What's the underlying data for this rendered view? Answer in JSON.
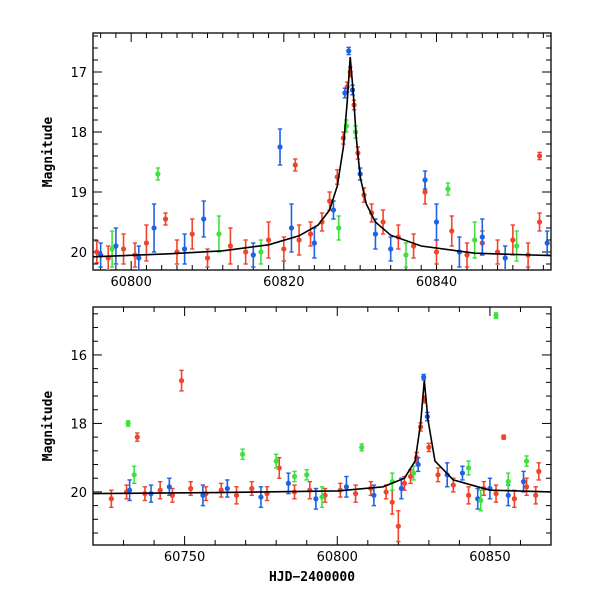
{
  "chart_data": [
    {
      "type": "scatter",
      "title": "",
      "xlabel": "",
      "ylabel": "Magnitude",
      "xlim": [
        60795,
        60855
      ],
      "ylim": [
        20.3,
        16.35
      ],
      "y_inverted": true,
      "x_ticks": [
        "60800",
        "60820",
        "60840"
      ],
      "y_ticks": [
        "17",
        "18",
        "19",
        "20"
      ],
      "grid": false,
      "legend": "none",
      "colors": {
        "red": "#f0442c",
        "blue": "#1e62e6",
        "green": "#3fe03f",
        "model": "#000000"
      },
      "model_curve": {
        "x": [
          60795,
          60805,
          60812,
          60818,
          60822,
          60824.5,
          60826,
          60827,
          60827.8,
          60828.3,
          60828.7,
          60829.1,
          60829.5,
          60830,
          60830.8,
          60832,
          60834,
          60838,
          60845,
          60855
        ],
        "y": [
          20.08,
          20.03,
          19.98,
          19.88,
          19.73,
          19.55,
          19.3,
          18.9,
          18.25,
          17.5,
          16.75,
          17.35,
          18.1,
          18.75,
          19.2,
          19.5,
          19.72,
          19.9,
          20.02,
          20.06
        ]
      },
      "series": [
        {
          "color": "red",
          "points": [
            {
              "x": 60795.5,
              "y": 20.0,
              "err": 0.18
            },
            {
              "x": 60797,
              "y": 20.1,
              "err": 0.2
            },
            {
              "x": 60799,
              "y": 19.95,
              "err": 0.25
            },
            {
              "x": 60800.5,
              "y": 20.05,
              "err": 0.2
            },
            {
              "x": 60802,
              "y": 19.85,
              "err": 0.3
            },
            {
              "x": 60804.5,
              "y": 19.45,
              "err": 0.1
            },
            {
              "x": 60806,
              "y": 20.0,
              "err": 0.2
            },
            {
              "x": 60808,
              "y": 19.7,
              "err": 0.25
            },
            {
              "x": 60810,
              "y": 20.1,
              "err": 0.15
            },
            {
              "x": 60813,
              "y": 19.9,
              "err": 0.3
            },
            {
              "x": 60815,
              "y": 20.0,
              "err": 0.2
            },
            {
              "x": 60818,
              "y": 19.8,
              "err": 0.3
            },
            {
              "x": 60820,
              "y": 19.95,
              "err": 0.2
            },
            {
              "x": 60822,
              "y": 19.8,
              "err": 0.25
            },
            {
              "x": 60821.5,
              "y": 18.55,
              "err": 0.1
            },
            {
              "x": 60823.5,
              "y": 19.7,
              "err": 0.2
            },
            {
              "x": 60825,
              "y": 19.5,
              "err": 0.15
            },
            {
              "x": 60826,
              "y": 19.15,
              "err": 0.15
            },
            {
              "x": 60827,
              "y": 18.75,
              "err": 0.12
            },
            {
              "x": 60827.8,
              "y": 18.1,
              "err": 0.1
            },
            {
              "x": 60828.3,
              "y": 17.25,
              "err": 0.08
            },
            {
              "x": 60828.7,
              "y": 17.0,
              "err": 0.08
            },
            {
              "x": 60829.2,
              "y": 17.55,
              "err": 0.08
            },
            {
              "x": 60829.7,
              "y": 18.35,
              "err": 0.1
            },
            {
              "x": 60830.5,
              "y": 19.05,
              "err": 0.12
            },
            {
              "x": 60831.5,
              "y": 19.35,
              "err": 0.15
            },
            {
              "x": 60833,
              "y": 19.5,
              "err": 0.2
            },
            {
              "x": 60835,
              "y": 19.75,
              "err": 0.2
            },
            {
              "x": 60837,
              "y": 19.9,
              "err": 0.2
            },
            {
              "x": 60838.5,
              "y": 19.0,
              "err": 0.2
            },
            {
              "x": 60840,
              "y": 20.0,
              "err": 0.2
            },
            {
              "x": 60842,
              "y": 19.65,
              "err": 0.25
            },
            {
              "x": 60844,
              "y": 20.05,
              "err": 0.2
            },
            {
              "x": 60846,
              "y": 19.85,
              "err": 0.2
            },
            {
              "x": 60848,
              "y": 20.0,
              "err": 0.2
            },
            {
              "x": 60850,
              "y": 19.8,
              "err": 0.25
            },
            {
              "x": 60852,
              "y": 20.05,
              "err": 0.2
            },
            {
              "x": 60853.5,
              "y": 18.4,
              "err": 0.06
            },
            {
              "x": 60853.5,
              "y": 19.5,
              "err": 0.15
            }
          ]
        },
        {
          "color": "blue",
          "points": [
            {
              "x": 60796,
              "y": 20.05,
              "err": 0.2
            },
            {
              "x": 60798,
              "y": 19.9,
              "err": 0.3
            },
            {
              "x": 60801,
              "y": 20.1,
              "err": 0.2
            },
            {
              "x": 60803,
              "y": 19.6,
              "err": 0.4
            },
            {
              "x": 60807,
              "y": 19.95,
              "err": 0.25
            },
            {
              "x": 60809.5,
              "y": 19.45,
              "err": 0.3
            },
            {
              "x": 60816,
              "y": 20.05,
              "err": 0.2
            },
            {
              "x": 60819.5,
              "y": 18.25,
              "err": 0.3
            },
            {
              "x": 60821,
              "y": 19.6,
              "err": 0.4
            },
            {
              "x": 60824,
              "y": 19.85,
              "err": 0.25
            },
            {
              "x": 60826.5,
              "y": 19.3,
              "err": 0.15
            },
            {
              "x": 60828,
              "y": 17.35,
              "err": 0.08
            },
            {
              "x": 60828.5,
              "y": 16.65,
              "err": 0.06
            },
            {
              "x": 60829,
              "y": 17.3,
              "err": 0.08
            },
            {
              "x": 60830,
              "y": 18.7,
              "err": 0.1
            },
            {
              "x": 60832,
              "y": 19.7,
              "err": 0.25
            },
            {
              "x": 60834,
              "y": 19.95,
              "err": 0.2
            },
            {
              "x": 60838.5,
              "y": 18.8,
              "err": 0.15
            },
            {
              "x": 60840,
              "y": 19.5,
              "err": 0.3
            },
            {
              "x": 60843,
              "y": 20.0,
              "err": 0.25
            },
            {
              "x": 60846,
              "y": 19.75,
              "err": 0.3
            },
            {
              "x": 60849,
              "y": 20.1,
              "err": 0.2
            },
            {
              "x": 60854.5,
              "y": 19.85,
              "err": 0.2
            }
          ]
        },
        {
          "color": "green",
          "points": [
            {
              "x": 60797.5,
              "y": 19.95,
              "err": 0.3
            },
            {
              "x": 60803.5,
              "y": 18.7,
              "err": 0.1
            },
            {
              "x": 60811.5,
              "y": 19.7,
              "err": 0.3
            },
            {
              "x": 60817,
              "y": 20.0,
              "err": 0.2
            },
            {
              "x": 60827.2,
              "y": 19.6,
              "err": 0.2
            },
            {
              "x": 60828.2,
              "y": 17.9,
              "err": 0.1
            },
            {
              "x": 60829.4,
              "y": 18.0,
              "err": 0.1
            },
            {
              "x": 60836,
              "y": 20.05,
              "err": 0.2
            },
            {
              "x": 60841.5,
              "y": 18.95,
              "err": 0.1
            },
            {
              "x": 60845,
              "y": 19.8,
              "err": 0.3
            },
            {
              "x": 60850.5,
              "y": 19.9,
              "err": 0.25
            }
          ]
        }
      ]
    },
    {
      "type": "scatter",
      "title": "",
      "xlabel": "HJD−2400000",
      "ylabel": "Magnitude",
      "xlim": [
        60720,
        60870
      ],
      "ylim": [
        21.55,
        14.6
      ],
      "y_inverted": true,
      "x_ticks": [
        "60750",
        "60800",
        "60850"
      ],
      "y_ticks": [
        "16",
        "18",
        "20"
      ],
      "grid": false,
      "legend": "none",
      "colors": {
        "red": "#f0442c",
        "blue": "#1e62e6",
        "green": "#3fe03f",
        "model": "#000000"
      },
      "model_curve": {
        "x": [
          60720,
          60760,
          60800,
          60815,
          60822,
          60825.5,
          60827.3,
          60828.5,
          60829.7,
          60832,
          60838,
          60850,
          60870
        ],
        "y": [
          20.05,
          20.02,
          19.97,
          19.85,
          19.6,
          19.1,
          18.0,
          16.75,
          17.9,
          19.1,
          19.65,
          19.95,
          20.0
        ]
      },
      "series": [
        {
          "color": "red",
          "points": [
            {
              "x": 60726,
              "y": 20.2,
              "err": 0.25
            },
            {
              "x": 60731,
              "y": 20.0,
              "err": 0.2
            },
            {
              "x": 60734.5,
              "y": 18.4,
              "err": 0.12
            },
            {
              "x": 60737,
              "y": 20.05,
              "err": 0.2
            },
            {
              "x": 60742,
              "y": 19.95,
              "err": 0.25
            },
            {
              "x": 60746,
              "y": 20.1,
              "err": 0.2
            },
            {
              "x": 60749,
              "y": 16.75,
              "err": 0.3
            },
            {
              "x": 60752,
              "y": 19.9,
              "err": 0.2
            },
            {
              "x": 60757,
              "y": 20.05,
              "err": 0.2
            },
            {
              "x": 60762,
              "y": 19.95,
              "err": 0.2
            },
            {
              "x": 60767,
              "y": 20.1,
              "err": 0.25
            },
            {
              "x": 60772,
              "y": 19.9,
              "err": 0.2
            },
            {
              "x": 60777,
              "y": 20.05,
              "err": 0.2
            },
            {
              "x": 60781,
              "y": 19.3,
              "err": 0.3
            },
            {
              "x": 60786,
              "y": 20.0,
              "err": 0.2
            },
            {
              "x": 60791,
              "y": 19.95,
              "err": 0.25
            },
            {
              "x": 60796,
              "y": 20.1,
              "err": 0.2
            },
            {
              "x": 60801,
              "y": 19.95,
              "err": 0.2
            },
            {
              "x": 60806,
              "y": 20.05,
              "err": 0.25
            },
            {
              "x": 60811,
              "y": 19.9,
              "err": 0.2
            },
            {
              "x": 60816,
              "y": 20.0,
              "err": 0.2
            },
            {
              "x": 60818,
              "y": 20.3,
              "err": 0.35
            },
            {
              "x": 60820,
              "y": 21.0,
              "err": 0.45
            },
            {
              "x": 60822,
              "y": 19.75,
              "err": 0.2
            },
            {
              "x": 60824,
              "y": 19.55,
              "err": 0.2
            },
            {
              "x": 60826,
              "y": 19.0,
              "err": 0.15
            },
            {
              "x": 60827.3,
              "y": 18.1,
              "err": 0.12
            },
            {
              "x": 60828.5,
              "y": 17.3,
              "err": 0.1
            },
            {
              "x": 60830,
              "y": 18.7,
              "err": 0.12
            },
            {
              "x": 60833,
              "y": 19.5,
              "err": 0.2
            },
            {
              "x": 60838,
              "y": 19.8,
              "err": 0.2
            },
            {
              "x": 60843,
              "y": 20.1,
              "err": 0.25
            },
            {
              "x": 60848,
              "y": 19.9,
              "err": 0.2
            },
            {
              "x": 60852,
              "y": 20.05,
              "err": 0.25
            },
            {
              "x": 60854.5,
              "y": 18.4,
              "err": 0.06
            },
            {
              "x": 60858,
              "y": 20.2,
              "err": 0.25
            },
            {
              "x": 60862,
              "y": 19.85,
              "err": 0.25
            },
            {
              "x": 60865,
              "y": 20.1,
              "err": 0.25
            },
            {
              "x": 60866,
              "y": 19.4,
              "err": 0.25
            }
          ]
        },
        {
          "color": "blue",
          "points": [
            {
              "x": 60732,
              "y": 19.95,
              "err": 0.3
            },
            {
              "x": 60739,
              "y": 20.05,
              "err": 0.25
            },
            {
              "x": 60745,
              "y": 19.85,
              "err": 0.25
            },
            {
              "x": 60756,
              "y": 20.1,
              "err": 0.3
            },
            {
              "x": 60764,
              "y": 19.9,
              "err": 0.25
            },
            {
              "x": 60775,
              "y": 20.15,
              "err": 0.3
            },
            {
              "x": 60784,
              "y": 19.75,
              "err": 0.3
            },
            {
              "x": 60793,
              "y": 20.2,
              "err": 0.3
            },
            {
              "x": 60803,
              "y": 19.85,
              "err": 0.3
            },
            {
              "x": 60812,
              "y": 20.1,
              "err": 0.3
            },
            {
              "x": 60821,
              "y": 19.9,
              "err": 0.3
            },
            {
              "x": 60826.5,
              "y": 19.2,
              "err": 0.2
            },
            {
              "x": 60828.3,
              "y": 16.65,
              "err": 0.08
            },
            {
              "x": 60829.5,
              "y": 17.8,
              "err": 0.12
            },
            {
              "x": 60836,
              "y": 19.5,
              "err": 0.35
            },
            {
              "x": 60841,
              "y": 19.45,
              "err": 0.2
            },
            {
              "x": 60846,
              "y": 20.2,
              "err": 0.3
            },
            {
              "x": 60850,
              "y": 19.9,
              "err": 0.3
            },
            {
              "x": 60856,
              "y": 20.1,
              "err": 0.3
            },
            {
              "x": 60861,
              "y": 19.7,
              "err": 0.3
            }
          ]
        },
        {
          "color": "green",
          "points": [
            {
              "x": 60731.5,
              "y": 18.0,
              "err": 0.08
            },
            {
              "x": 60733.5,
              "y": 19.5,
              "err": 0.25
            },
            {
              "x": 60769,
              "y": 18.9,
              "err": 0.15
            },
            {
              "x": 60780,
              "y": 19.1,
              "err": 0.2
            },
            {
              "x": 60786,
              "y": 19.55,
              "err": 0.15
            },
            {
              "x": 60790,
              "y": 19.5,
              "err": 0.15
            },
            {
              "x": 60795,
              "y": 20.15,
              "err": 0.3
            },
            {
              "x": 60808,
              "y": 18.7,
              "err": 0.1
            },
            {
              "x": 60818,
              "y": 19.7,
              "err": 0.25
            },
            {
              "x": 60825,
              "y": 19.45,
              "err": 0.2
            },
            {
              "x": 60843,
              "y": 19.3,
              "err": 0.2
            },
            {
              "x": 60847,
              "y": 20.25,
              "err": 0.3
            },
            {
              "x": 60852,
              "y": 14.85,
              "err": 0.08
            },
            {
              "x": 60856,
              "y": 19.7,
              "err": 0.25
            },
            {
              "x": 60862,
              "y": 19.1,
              "err": 0.15
            }
          ]
        }
      ]
    }
  ]
}
